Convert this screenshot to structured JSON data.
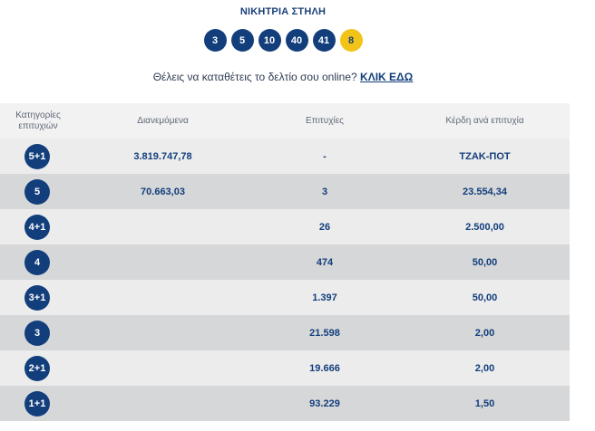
{
  "title": "ΝΙΚΗΤΡΙΑ ΣΤΗΛΗ",
  "numbers": [
    "3",
    "5",
    "10",
    "40",
    "41"
  ],
  "bonus": "8",
  "online": {
    "text": "Θέλεις να καταθέτεις το δελτίο σου online?",
    "link": "ΚΛΙΚ ΕΔΩ"
  },
  "headers": {
    "categories": "Κατηγορίες επιτυχιών",
    "distributed": "Διανεμόμενα",
    "winners": "Επιτυχίες",
    "prize": "Κέρδη ανά επιτυχία"
  },
  "rows": [
    {
      "category": "5+1",
      "distributed": "3.819.747,78",
      "winners": "-",
      "prize": "ΤΖΑΚ-ΠΟΤ"
    },
    {
      "category": "5",
      "distributed": "70.663,03",
      "winners": "3",
      "prize": "23.554,34"
    },
    {
      "category": "4+1",
      "distributed": "",
      "winners": "26",
      "prize": "2.500,00"
    },
    {
      "category": "4",
      "distributed": "",
      "winners": "474",
      "prize": "50,00"
    },
    {
      "category": "3+1",
      "distributed": "",
      "winners": "1.397",
      "prize": "50,00"
    },
    {
      "category": "3",
      "distributed": "",
      "winners": "21.598",
      "prize": "2,00"
    },
    {
      "category": "2+1",
      "distributed": "",
      "winners": "19.666",
      "prize": "2,00"
    },
    {
      "category": "1+1",
      "distributed": "",
      "winners": "93.229",
      "prize": "1,50"
    }
  ],
  "colors": {
    "navy": "#123e7c",
    "gold": "#f2c318",
    "row_light": "#ececec",
    "row_dark": "#d6d7d9"
  }
}
